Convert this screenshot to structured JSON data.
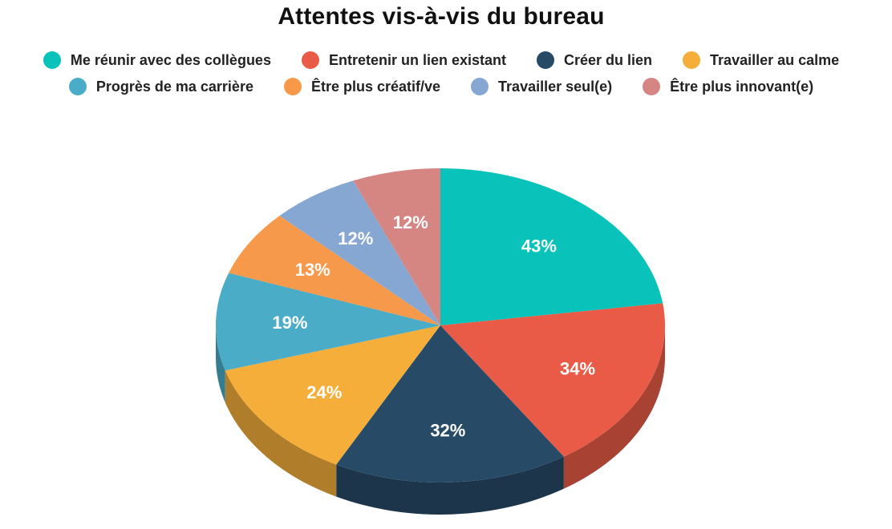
{
  "chart_data": {
    "type": "pie",
    "title": "Attentes vis-à-vis du bureau",
    "legend_position": "top",
    "three_d": true,
    "slices": [
      {
        "label": "Me réunir avec des collègues",
        "value": 43,
        "value_label": "43%",
        "color": "#09C3BA"
      },
      {
        "label": "Entretenir un lien existant",
        "value": 34,
        "value_label": "34%",
        "color": "#E95B47"
      },
      {
        "label": "Créer du lien",
        "value": 32,
        "value_label": "32%",
        "color": "#274A67"
      },
      {
        "label": "Travailler au calme",
        "value": 24,
        "value_label": "24%",
        "color": "#F5AE3A"
      },
      {
        "label": "Progrès de ma carrière",
        "value": 19,
        "value_label": "19%",
        "color": "#4BACC7"
      },
      {
        "label": "Être plus créatif/ve",
        "value": 13,
        "value_label": "13%",
        "color": "#F7994A"
      },
      {
        "label": "Travailler seul(e)",
        "value": 12,
        "value_label": "12%",
        "color": "#86A7D2"
      },
      {
        "label": "Être plus innovant(e)",
        "value": 12,
        "value_label": "12%",
        "color": "#D68682"
      }
    ]
  }
}
